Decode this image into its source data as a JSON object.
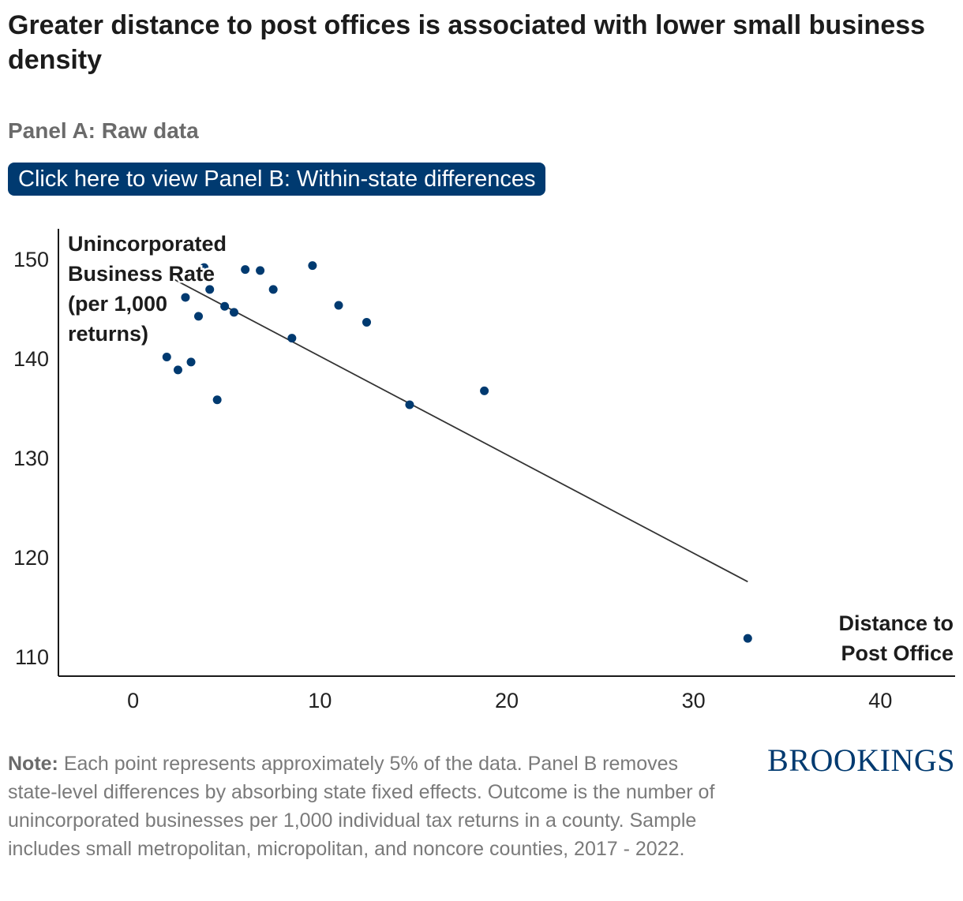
{
  "title": "Greater distance to post offices is associated with lower small business density",
  "subtitle": "Panel A: Raw data",
  "panel_button": "Click here to view Panel B: Within-state differences",
  "note_label": "Note:",
  "note_text": " Each point represents approximately 5% of the data. Panel B removes state-level differences by absorbing state fixed effects. Outcome is the number of unincorporated businesses per 1,000 individual tax returns in a county. Sample includes small metropolitan, micropolitan, and noncore counties, 2017 - 2022.",
  "logo": "BROOKINGS",
  "colors": {
    "point": "#003a70",
    "button": "#003a70",
    "trendline": "#333333"
  },
  "chart_data": {
    "type": "scatter",
    "ylabel_lines": [
      "Unincorporated",
      "Business Rate",
      "(per 1,000",
      "returns)"
    ],
    "xlabel_lines": [
      "Distance to",
      "Post Office"
    ],
    "xlim": [
      -4,
      44
    ],
    "ylim": [
      108,
      153
    ],
    "xticks": [
      0,
      10,
      20,
      30,
      40
    ],
    "yticks": [
      110,
      120,
      130,
      140,
      150
    ],
    "grid": false,
    "points": [
      {
        "x": 1.8,
        "y": 140.1
      },
      {
        "x": 2.4,
        "y": 138.8
      },
      {
        "x": 2.8,
        "y": 146.1
      },
      {
        "x": 3.1,
        "y": 139.6
      },
      {
        "x": 3.5,
        "y": 144.2
      },
      {
        "x": 3.8,
        "y": 149.1
      },
      {
        "x": 4.1,
        "y": 146.9
      },
      {
        "x": 4.5,
        "y": 135.8
      },
      {
        "x": 4.9,
        "y": 145.2
      },
      {
        "x": 5.4,
        "y": 144.6
      },
      {
        "x": 6.0,
        "y": 148.9
      },
      {
        "x": 6.8,
        "y": 148.8
      },
      {
        "x": 7.5,
        "y": 146.9
      },
      {
        "x": 8.5,
        "y": 142.0
      },
      {
        "x": 9.6,
        "y": 149.3
      },
      {
        "x": 11.0,
        "y": 145.3
      },
      {
        "x": 12.5,
        "y": 143.6
      },
      {
        "x": 14.8,
        "y": 135.3
      },
      {
        "x": 18.8,
        "y": 136.7
      },
      {
        "x": 32.9,
        "y": 111.8
      }
    ],
    "trendline": {
      "x": [
        1.9,
        32.9
      ],
      "y": [
        148.2,
        117.5
      ]
    }
  }
}
